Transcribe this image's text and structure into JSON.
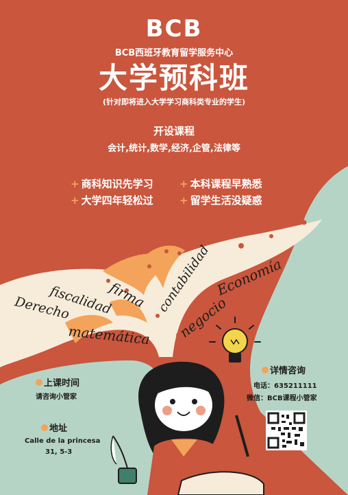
{
  "header": {
    "logo": "BCB",
    "org_name": "BCB西班牙教育留学服务中心",
    "title": "大学预科班",
    "subtitle": "(针对即将进入大学学习商科类专业的学生)"
  },
  "courses": {
    "heading": "开设课程",
    "list": "会计,统计,数学,经济,企管,法律等"
  },
  "features": [
    {
      "plus": "+",
      "label": "商科知识先学习"
    },
    {
      "plus": "+",
      "label": "本科课程早熟悉"
    },
    {
      "plus": "+",
      "label": "大学四年轻松过"
    },
    {
      "plus": "+",
      "label": "留学生活没疑惑"
    }
  ],
  "subjects": [
    "Derecho",
    "matemática",
    "fiscalidad",
    "firma",
    "contabilidad",
    "negocio",
    "Economía"
  ],
  "schedule": {
    "heading": "上课时间",
    "text": "请咨询小管家"
  },
  "address": {
    "heading": "地址",
    "line1": "Calle de la princesa",
    "line2": "31, 5-3"
  },
  "contact": {
    "heading": "详情咨询",
    "phone": "电话：635211111",
    "wechat": "微信：BCB课程小管家"
  },
  "colors": {
    "background": "#c9563d",
    "accent": "#f4a35a",
    "mint": "#b6d4c6",
    "paper": "#f7ecd9"
  }
}
